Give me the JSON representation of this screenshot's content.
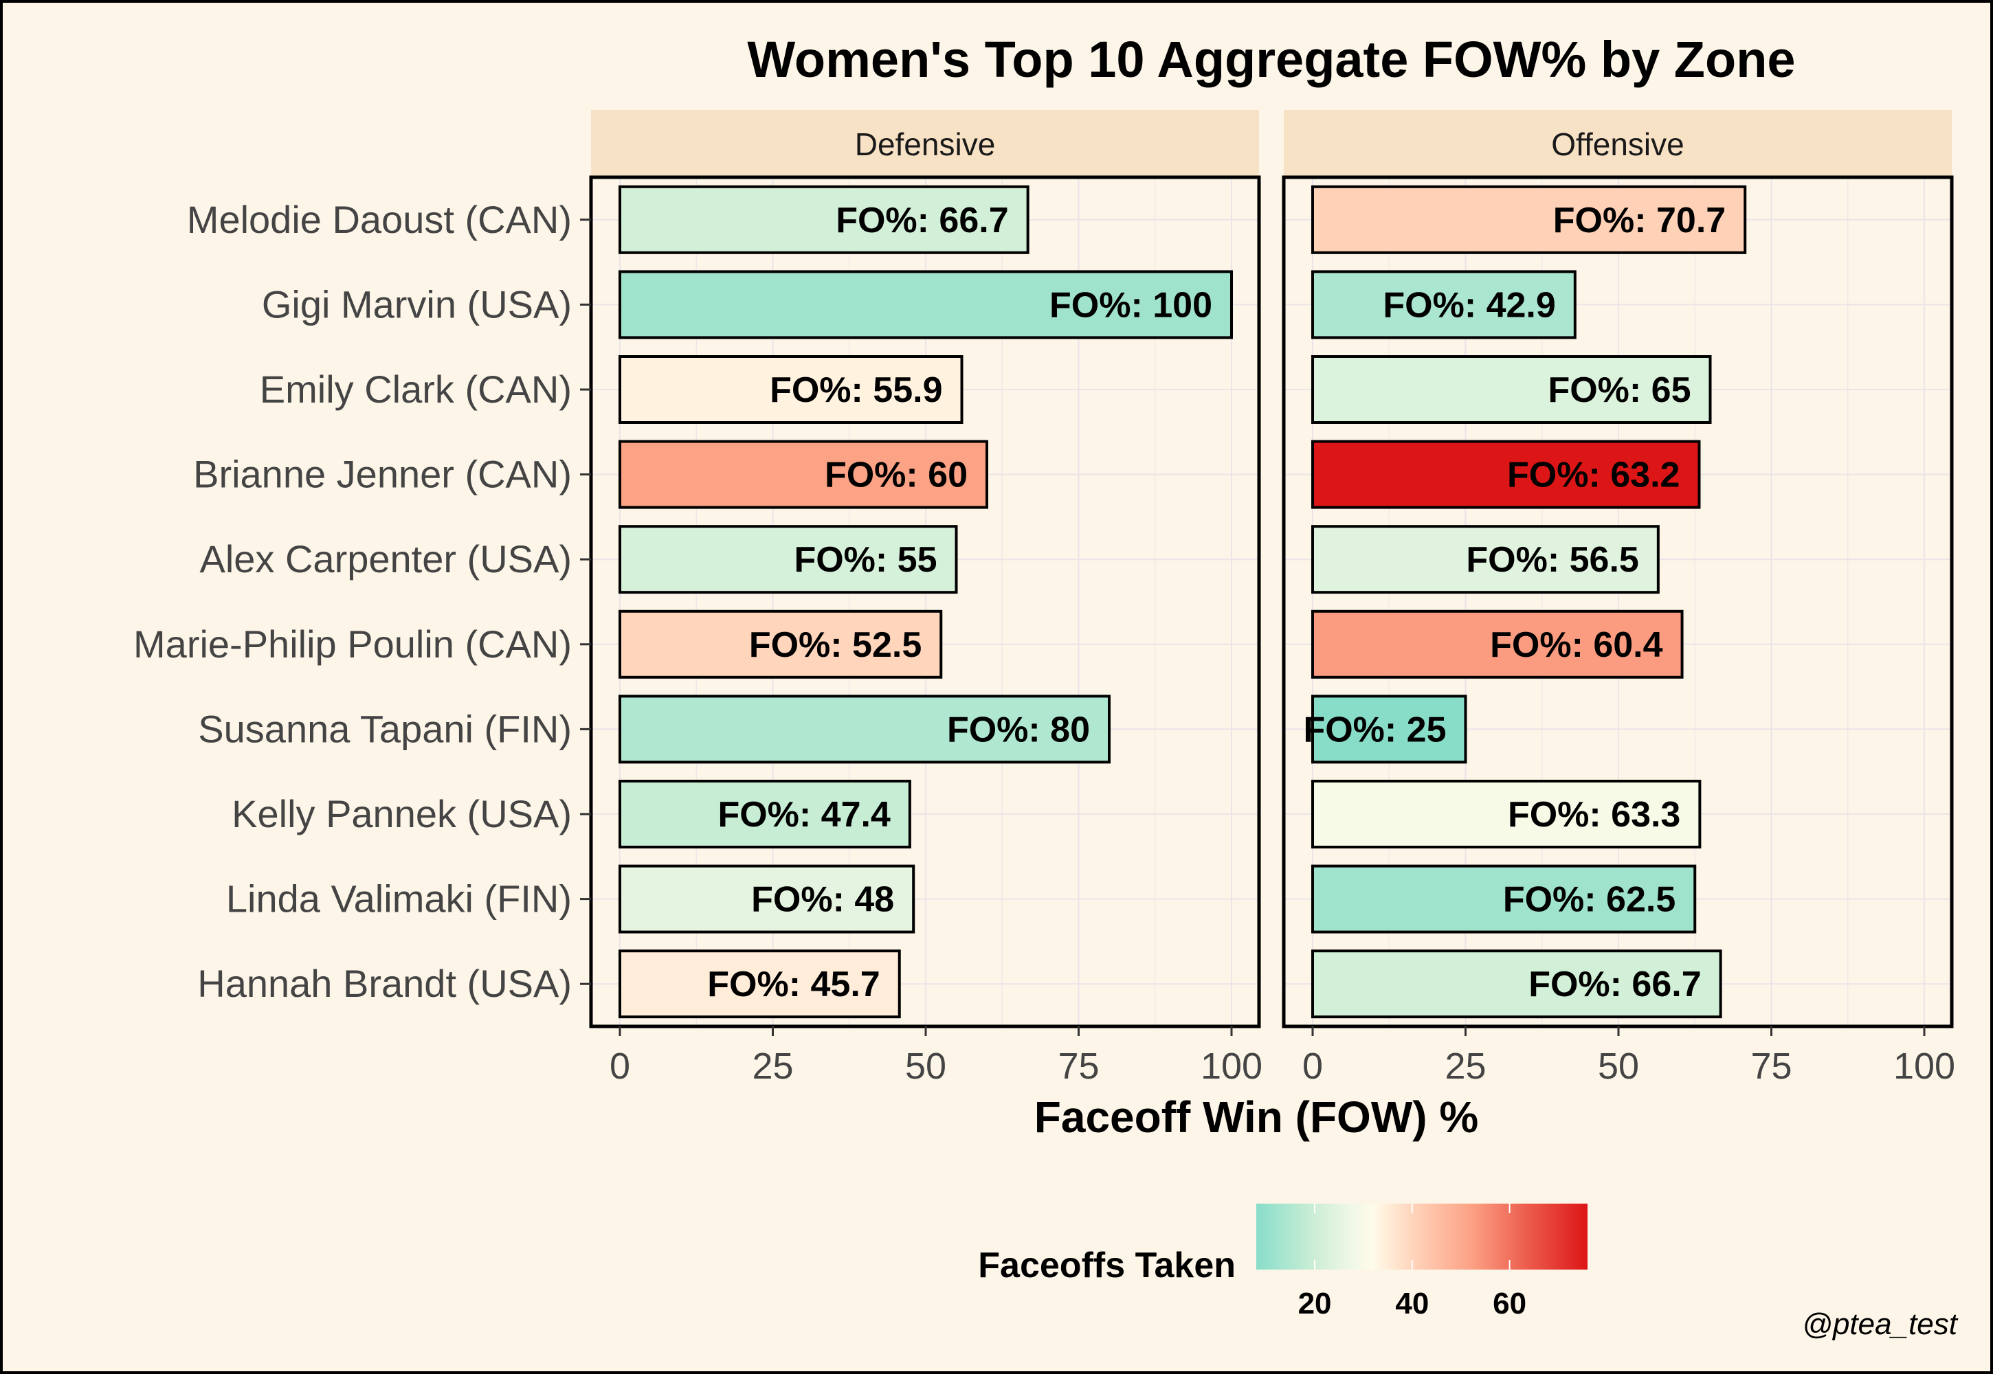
{
  "chart_data": {
    "type": "bar",
    "orientation": "horizontal",
    "title": "Women's Top 10 Aggregate FOW% by Zone",
    "xlabel": "Faceoff Win (FOW) %",
    "ylabel": "",
    "xlim": [
      0,
      100
    ],
    "x_ticks": [
      0,
      25,
      50,
      75,
      100
    ],
    "grid": true,
    "label_prefix": "FO%:",
    "categories": [
      "Melodie Daoust (CAN)",
      "Gigi Marvin (USA)",
      "Emily Clark (CAN)",
      "Brianne Jenner (CAN)",
      "Alex Carpenter (USA)",
      "Marie-Philip Poulin (CAN)",
      "Susanna Tapani (FIN)",
      "Kelly Pannek (USA)",
      "Linda Valimaki (FIN)",
      "Hannah Brandt (USA)"
    ],
    "panels": [
      {
        "label": "Defensive",
        "values": [
          66.7,
          100,
          55.9,
          60,
          55,
          52.5,
          80,
          47.4,
          48,
          45.7
        ],
        "value_labels": [
          "66.7",
          "100",
          "55.9",
          "60",
          "55",
          "52.5",
          "80",
          "47.4",
          "48",
          "45.7"
        ],
        "faceoffs_taken": [
          21,
          12,
          34,
          52,
          22,
          40,
          15,
          19,
          25,
          35
        ]
      },
      {
        "label": "Offensive",
        "values": [
          70.7,
          42.9,
          65,
          63.2,
          56.5,
          60.4,
          25,
          63.3,
          62.5,
          66.7
        ],
        "value_labels": [
          "70.7",
          "42.9",
          "65",
          "63.2",
          "56.5",
          "60.4",
          "25",
          "63.3",
          "62.5",
          "66.7"
        ],
        "faceoffs_taken": [
          41,
          14,
          23,
          76,
          24,
          53,
          8,
          30,
          12,
          21
        ]
      }
    ],
    "legend": {
      "title": "Faceoffs Taken",
      "placement": "bottom",
      "ticks": [
        20,
        40,
        60
      ],
      "range": [
        8,
        76
      ],
      "colors": [
        {
          "value": 8,
          "color": "#88ddc9"
        },
        {
          "value": 20,
          "color": "#cdeed6"
        },
        {
          "value": 28,
          "color": "#f1f8e6"
        },
        {
          "value": 32,
          "color": "#fffbea"
        },
        {
          "value": 40,
          "color": "#ffd5bc"
        },
        {
          "value": 52,
          "color": "#fca285"
        },
        {
          "value": 64,
          "color": "#ec5a4b"
        },
        {
          "value": 76,
          "color": "#dc1616"
        }
      ]
    },
    "caption": "@ptea_test"
  },
  "colors": {
    "background": "#fdf5e8",
    "strip": "#f8e2c5",
    "grid": "#ebe4e8",
    "axis_text": "#444444"
  }
}
